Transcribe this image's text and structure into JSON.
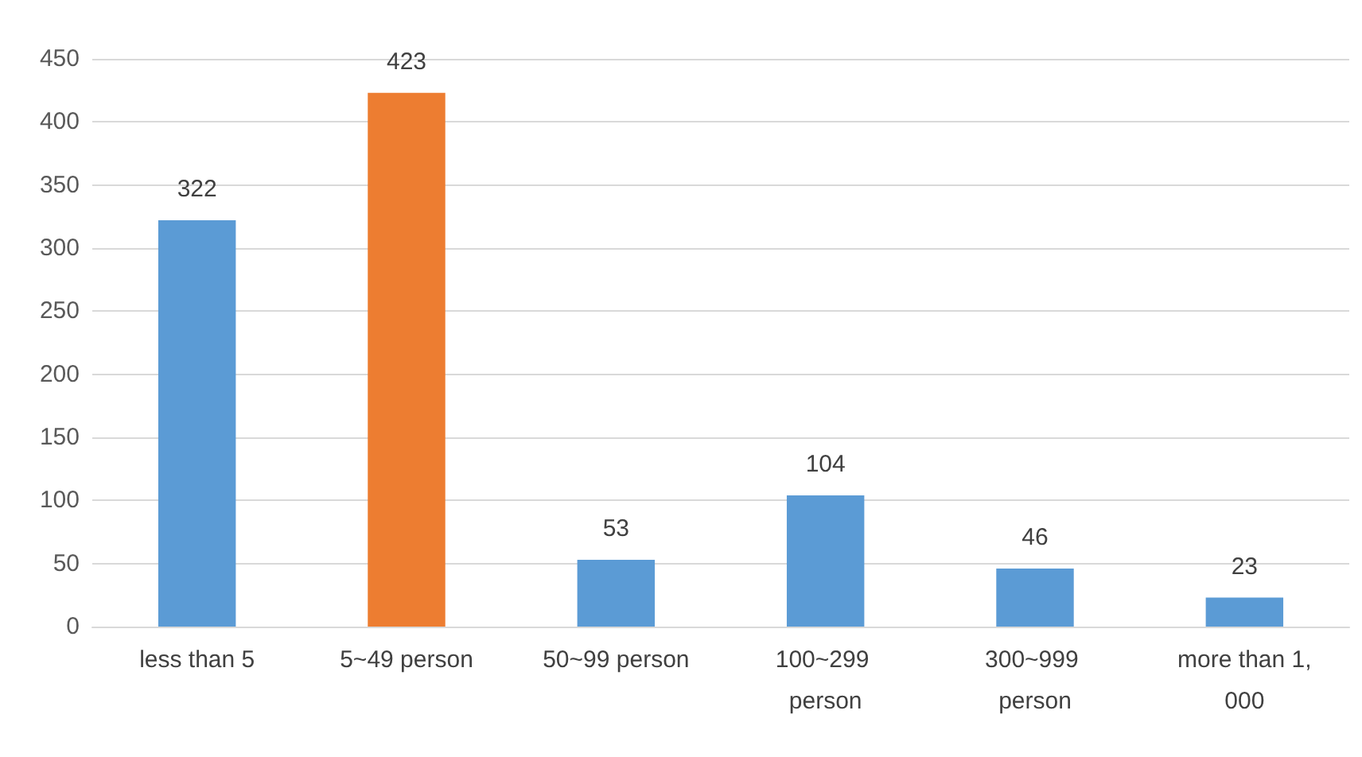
{
  "chart_data": {
    "type": "bar",
    "categories": [
      "less than 5",
      "5~49 person",
      "50~99 person",
      "100~299 person",
      "300~999 person",
      "more than 1,000"
    ],
    "values": [
      322,
      423,
      53,
      104,
      46,
      23
    ],
    "colors": [
      "#5b9bd5",
      "#ed7d31",
      "#5b9bd5",
      "#5b9bd5",
      "#5b9bd5",
      "#5b9bd5"
    ],
    "ylim": [
      0,
      450
    ],
    "yticks": [
      0,
      50,
      100,
      150,
      200,
      250,
      300,
      350,
      400,
      450
    ],
    "grid": "y",
    "data_labels": true
  }
}
